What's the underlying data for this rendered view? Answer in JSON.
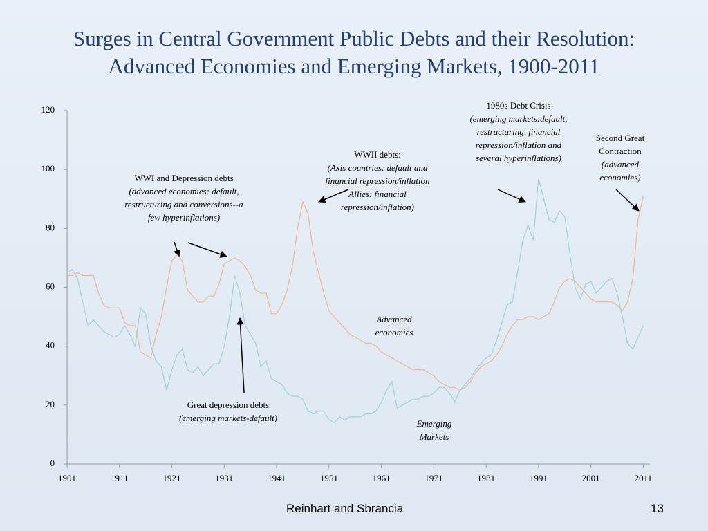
{
  "chart_data": {
    "type": "line",
    "title": [
      "Surges in Central Government Public Debts and their Resolution:",
      "Advanced Economies and Emerging Markets, 1900-2011"
    ],
    "x": [
      1901,
      1902,
      1903,
      1904,
      1905,
      1906,
      1907,
      1908,
      1909,
      1910,
      1911,
      1912,
      1913,
      1914,
      1915,
      1916,
      1917,
      1918,
      1919,
      1920,
      1921,
      1922,
      1923,
      1924,
      1925,
      1926,
      1927,
      1928,
      1929,
      1930,
      1931,
      1932,
      1933,
      1934,
      1935,
      1936,
      1937,
      1938,
      1939,
      1940,
      1941,
      1942,
      1943,
      1944,
      1945,
      1946,
      1947,
      1948,
      1949,
      1950,
      1951,
      1952,
      1953,
      1954,
      1955,
      1956,
      1957,
      1958,
      1959,
      1960,
      1961,
      1962,
      1963,
      1964,
      1965,
      1966,
      1967,
      1968,
      1969,
      1970,
      1971,
      1972,
      1973,
      1974,
      1975,
      1976,
      1977,
      1978,
      1979,
      1980,
      1981,
      1982,
      1983,
      1984,
      1985,
      1986,
      1987,
      1988,
      1989,
      1990,
      1991,
      1992,
      1993,
      1994,
      1995,
      1996,
      1997,
      1998,
      1999,
      2000,
      2001,
      2002,
      2003,
      2004,
      2005,
      2006,
      2007,
      2008,
      2009,
      2010,
      2011
    ],
    "series": [
      {
        "name": "Advanced economies",
        "color": "#f5b48a",
        "values": [
          64,
          64,
          65,
          64,
          64,
          64,
          58,
          54,
          53,
          53,
          53,
          48,
          47,
          47,
          38,
          37,
          36,
          44,
          50,
          60,
          69,
          71,
          69,
          59,
          57,
          55,
          55,
          57,
          57,
          61,
          68,
          69,
          70,
          69,
          67,
          64,
          59,
          58,
          58,
          51,
          51,
          54,
          59,
          67,
          80,
          89,
          85,
          72,
          65,
          58,
          52,
          50,
          48,
          46,
          44,
          43,
          42,
          41,
          41,
          40,
          38,
          37,
          36,
          35,
          34,
          33,
          32,
          32,
          32,
          31,
          30,
          28,
          27,
          26,
          26,
          25,
          26,
          28,
          31,
          33,
          34,
          35,
          37,
          40,
          44,
          47,
          49,
          49,
          50,
          50,
          49,
          50,
          51,
          55,
          60,
          62,
          63,
          62,
          60,
          58,
          56,
          55,
          55,
          55,
          55,
          54,
          52,
          55,
          63,
          83,
          91
        ]
      },
      {
        "name": "Emerging Markets",
        "color": "#9fd2d4",
        "values": [
          65,
          66,
          63,
          55,
          47,
          49,
          47,
          45,
          44,
          43,
          44,
          47,
          44,
          40,
          53,
          51,
          40,
          35,
          33,
          25,
          32,
          37,
          39,
          32,
          31,
          33,
          30,
          32,
          34,
          34,
          40,
          50,
          64,
          58,
          47,
          44,
          41,
          33,
          35,
          29,
          28,
          27,
          24,
          23,
          23,
          22,
          18,
          17,
          18,
          18,
          15,
          14,
          16,
          15,
          16,
          16,
          16,
          17,
          17,
          18,
          21,
          25,
          28,
          19,
          20,
          21,
          22,
          22,
          23,
          23,
          24,
          26,
          26,
          24,
          21,
          25,
          27,
          29,
          32,
          34,
          36,
          37,
          42,
          48,
          54,
          55,
          65,
          76,
          81,
          76,
          97,
          90,
          83,
          82,
          86,
          84,
          71,
          60,
          56,
          61,
          62,
          58,
          60,
          62,
          63,
          58,
          50,
          41,
          39,
          43,
          47
        ]
      }
    ],
    "xlim": [
      1901,
      2012
    ],
    "xticks": [
      1901,
      1911,
      1921,
      1931,
      1941,
      1951,
      1961,
      1971,
      1981,
      1991,
      2001,
      2011
    ],
    "ylim": [
      0,
      120
    ],
    "yticks": [
      0,
      20,
      40,
      60,
      80,
      100,
      120
    ],
    "annotations": [
      {
        "text": "WWI and Depression debts",
        "detail": "(advanced economies: default, restructuring and conversions--a few hyperinflations)"
      },
      {
        "text": "WWII debts:",
        "detail": "(Axis countries: default and financial repression/inflation Allies: financial repression/inflation)"
      },
      {
        "text": "1980s Debt Crisis",
        "detail": "(emerging markets:default, restructuring, financial repression/inflation and several hyperinflations)"
      },
      {
        "text": "Second Great Contraction",
        "detail": "(advanced economies)"
      },
      {
        "text": "Great depression debts",
        "detail": "(emerging markets-default)"
      }
    ]
  },
  "footer": {
    "source": "Reinhart and Sbrancia",
    "page": "13"
  }
}
